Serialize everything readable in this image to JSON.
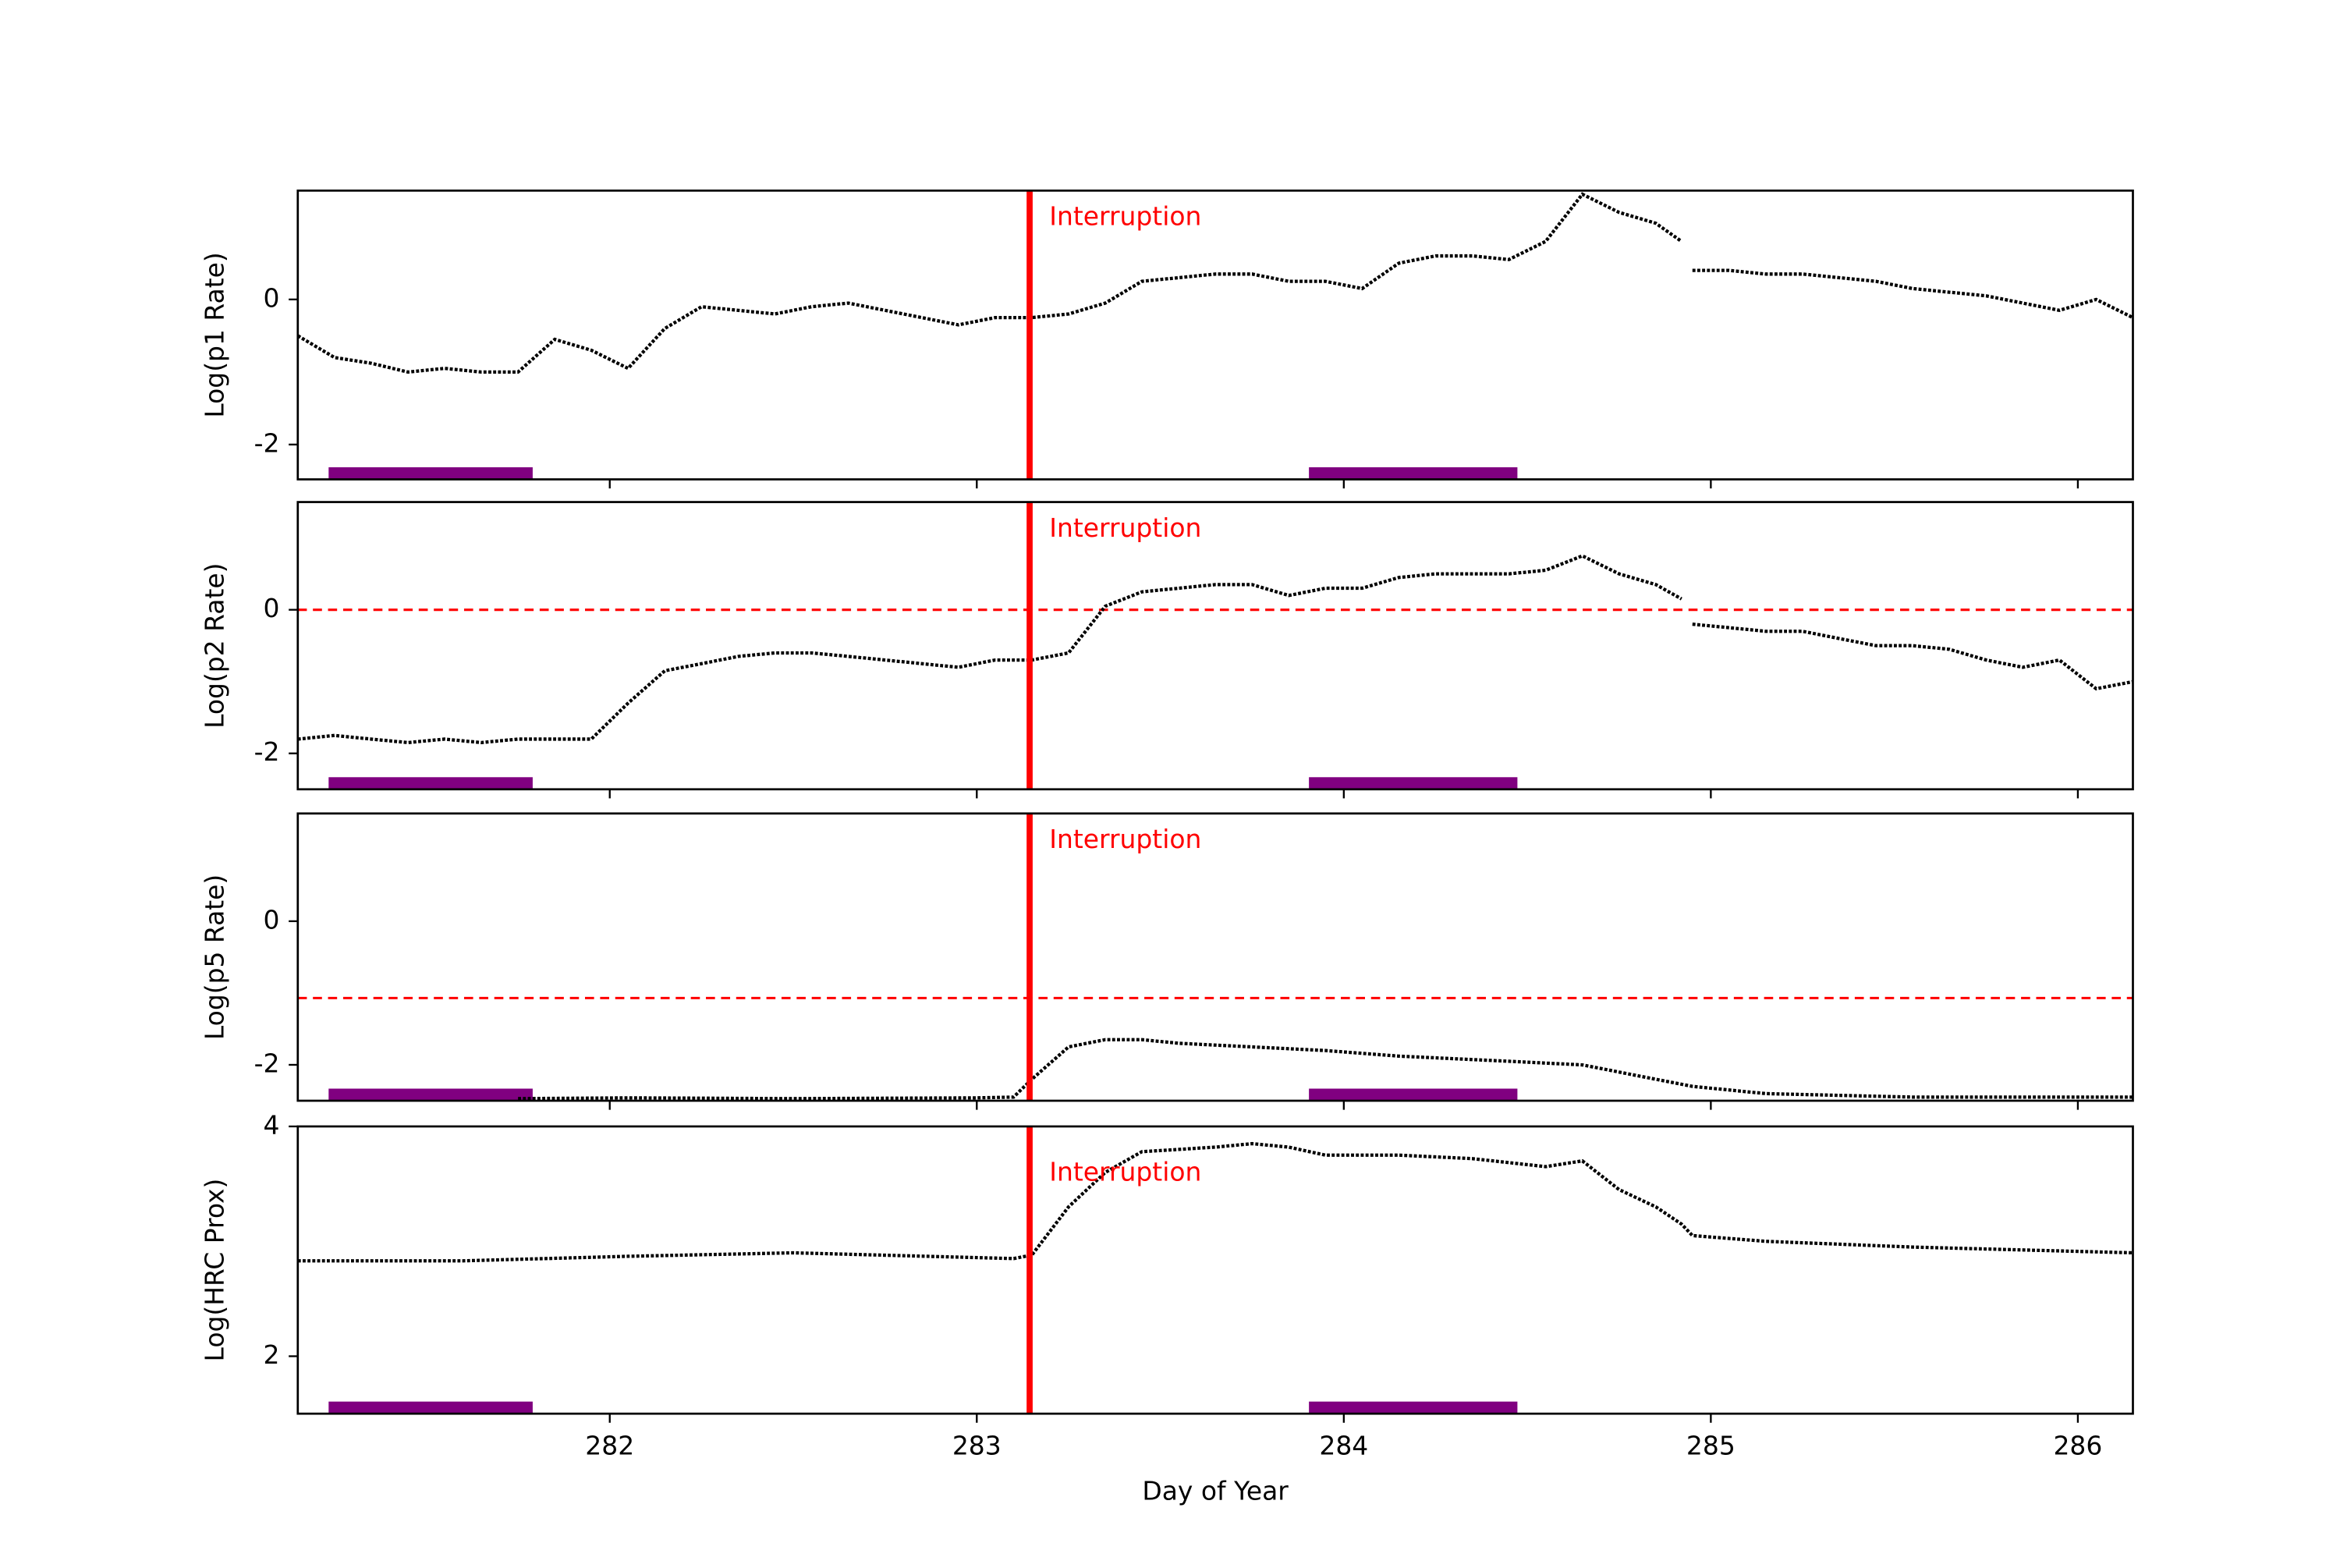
{
  "chart_data": [
    {
      "type": "line",
      "ylabel": "Log(p1 Rate)",
      "xlim": [
        281.15,
        286.15
      ],
      "ylim": [
        -2.48,
        1.5
      ],
      "yticks": [
        0,
        -2
      ],
      "vline": 283.144,
      "vline_color": "#ff0000",
      "annotation": "Interruption",
      "annotation_color": "#ff0000",
      "bands": [
        [
          281.234,
          281.79
        ],
        [
          283.905,
          284.473
        ]
      ],
      "band_color": "#800080",
      "series": [
        {
          "color": "#000000",
          "x": [
            281.15,
            281.25,
            281.35,
            281.45,
            281.55,
            281.65,
            281.75,
            281.85,
            281.95,
            282.05,
            282.15,
            282.25,
            282.35,
            282.45,
            282.55,
            282.65,
            282.75,
            282.85,
            282.95,
            283.05,
            283.15,
            283.25,
            283.35,
            283.45,
            283.55,
            283.65,
            283.75,
            283.85,
            283.95,
            284.05,
            284.15,
            284.25,
            284.35,
            284.45,
            284.55,
            284.65,
            284.75,
            284.85,
            284.92,
            284.93,
            284.95,
            285.05,
            285.15,
            285.25,
            285.35,
            285.45,
            285.55,
            285.65,
            285.75,
            285.85,
            285.95,
            286.05,
            286.15
          ],
          "values": [
            -0.5,
            -0.8,
            -0.88,
            -1.0,
            -0.95,
            -1.0,
            -1.0,
            -0.55,
            -0.7,
            -0.95,
            -0.4,
            -0.1,
            -0.15,
            -0.2,
            -0.1,
            -0.05,
            -0.15,
            -0.25,
            -0.35,
            -0.25,
            -0.25,
            -0.2,
            -0.05,
            0.25,
            0.3,
            0.35,
            0.35,
            0.25,
            0.25,
            0.15,
            0.5,
            0.6,
            0.6,
            0.55,
            0.8,
            1.45,
            1.2,
            1.05,
            0.8,
            null,
            0.4,
            0.4,
            0.35,
            0.35,
            0.3,
            0.25,
            0.15,
            0.1,
            0.05,
            -0.05,
            -0.15,
            0.0,
            -0.25
          ]
        }
      ]
    },
    {
      "type": "line",
      "ylabel": "Log(p2 Rate)",
      "xlim": [
        281.15,
        286.15
      ],
      "ylim": [
        -2.5,
        1.5
      ],
      "yticks": [
        0,
        -2
      ],
      "hline": 0,
      "hline_color": "#ff0000",
      "vline": 283.144,
      "vline_color": "#ff0000",
      "annotation": "Interruption",
      "annotation_color": "#ff0000",
      "bands": [
        [
          281.234,
          281.79
        ],
        [
          283.905,
          284.473
        ]
      ],
      "band_color": "#800080",
      "series": [
        {
          "color": "#000000",
          "x": [
            281.15,
            281.25,
            281.35,
            281.45,
            281.55,
            281.65,
            281.75,
            281.85,
            281.95,
            282.05,
            282.15,
            282.25,
            282.35,
            282.45,
            282.55,
            282.65,
            282.75,
            282.85,
            282.95,
            283.05,
            283.15,
            283.25,
            283.35,
            283.45,
            283.55,
            283.65,
            283.75,
            283.85,
            283.95,
            284.05,
            284.15,
            284.25,
            284.35,
            284.45,
            284.55,
            284.65,
            284.75,
            284.85,
            284.92,
            284.93,
            284.95,
            285.05,
            285.15,
            285.25,
            285.35,
            285.45,
            285.55,
            285.65,
            285.75,
            285.85,
            285.95,
            286.05,
            286.15
          ],
          "values": [
            -1.8,
            -1.75,
            -1.8,
            -1.85,
            -1.8,
            -1.85,
            -1.8,
            -1.8,
            -1.8,
            -1.3,
            -0.85,
            -0.75,
            -0.65,
            -0.6,
            -0.6,
            -0.65,
            -0.7,
            -0.75,
            -0.8,
            -0.7,
            -0.7,
            -0.6,
            0.05,
            0.25,
            0.3,
            0.35,
            0.35,
            0.2,
            0.3,
            0.3,
            0.45,
            0.5,
            0.5,
            0.5,
            0.55,
            0.75,
            0.5,
            0.35,
            0.15,
            null,
            -0.2,
            -0.25,
            -0.3,
            -0.3,
            -0.4,
            -0.5,
            -0.5,
            -0.55,
            -0.7,
            -0.8,
            -0.7,
            -1.1,
            -1.0
          ]
        }
      ]
    },
    {
      "type": "line",
      "ylabel": "Log(p5 Rate)",
      "xlim": [
        281.15,
        286.15
      ],
      "ylim": [
        -2.5,
        1.5
      ],
      "yticks": [
        0,
        -2
      ],
      "hline": -1.07,
      "hline_color": "#ff0000",
      "vline": 283.144,
      "vline_color": "#ff0000",
      "annotation": "Interruption",
      "annotation_color": "#ff0000",
      "bands": [
        [
          281.234,
          281.79
        ],
        [
          283.905,
          284.473
        ]
      ],
      "band_color": "#800080",
      "series": [
        {
          "color": "#000000",
          "x": [
            281.75,
            282.05,
            282.5,
            283.0,
            283.1,
            283.15,
            283.25,
            283.35,
            283.45,
            283.55,
            283.75,
            283.95,
            284.15,
            284.45,
            284.65,
            284.85,
            284.95,
            285.15,
            285.55,
            286.15
          ],
          "values": [
            -2.47,
            -2.46,
            -2.47,
            -2.46,
            -2.45,
            -2.2,
            -1.75,
            -1.65,
            -1.65,
            -1.7,
            -1.75,
            -1.8,
            -1.88,
            -1.95,
            -2.0,
            -2.2,
            -2.3,
            -2.4,
            -2.45,
            -2.45
          ]
        }
      ]
    },
    {
      "type": "line",
      "ylabel": "Log(HRC Prox)",
      "xlabel": "Day of Year",
      "xlim": [
        281.15,
        286.15
      ],
      "ylim": [
        1.5,
        4
      ],
      "yticks": [
        4,
        2
      ],
      "xticks": [
        282,
        283,
        284,
        285,
        286
      ],
      "vline": 283.144,
      "vline_color": "#ff0000",
      "annotation": "Interruption",
      "annotation_color": "#ff0000",
      "bands": [
        [
          281.234,
          281.79
        ],
        [
          283.905,
          284.473
        ]
      ],
      "band_color": "#800080",
      "series": [
        {
          "color": "#000000",
          "x": [
            281.15,
            281.6,
            282.05,
            282.5,
            283.1,
            283.15,
            283.25,
            283.35,
            283.45,
            283.55,
            283.65,
            283.75,
            283.85,
            283.95,
            284.15,
            284.35,
            284.55,
            284.65,
            284.75,
            284.85,
            284.92,
            284.95,
            285.15,
            285.55,
            286.15
          ],
          "values": [
            2.83,
            2.83,
            2.87,
            2.9,
            2.85,
            2.88,
            3.3,
            3.6,
            3.78,
            3.8,
            3.82,
            3.85,
            3.82,
            3.75,
            3.75,
            3.72,
            3.65,
            3.7,
            3.45,
            3.3,
            3.15,
            3.05,
            3.0,
            2.95,
            2.9
          ]
        }
      ]
    }
  ]
}
